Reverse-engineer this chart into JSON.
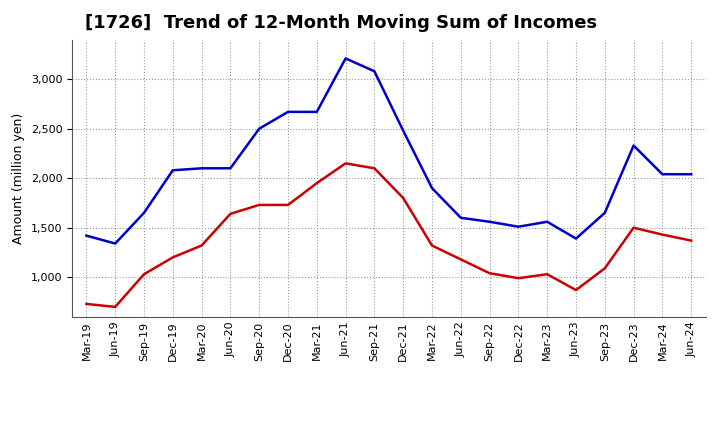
{
  "title": "[1726]  Trend of 12-Month Moving Sum of Incomes",
  "ylabel": "Amount (million yen)",
  "labels": [
    "Mar-19",
    "Jun-19",
    "Sep-19",
    "Dec-19",
    "Mar-20",
    "Jun-20",
    "Sep-20",
    "Dec-20",
    "Mar-21",
    "Jun-21",
    "Sep-21",
    "Dec-21",
    "Mar-22",
    "Jun-22",
    "Sep-22",
    "Dec-22",
    "Mar-23",
    "Jun-23",
    "Sep-23",
    "Dec-23",
    "Mar-24",
    "Jun-24"
  ],
  "ordinary_income": [
    1420,
    1340,
    1650,
    2080,
    2100,
    2100,
    2500,
    2670,
    2670,
    3210,
    3080,
    2480,
    1900,
    1600,
    1560,
    1510,
    1560,
    1390,
    1650,
    2330,
    2040,
    2040
  ],
  "net_income": [
    730,
    700,
    1030,
    1200,
    1320,
    1640,
    1730,
    1730,
    1950,
    2150,
    2100,
    1800,
    1320,
    1180,
    1040,
    990,
    1030,
    870,
    1090,
    1500,
    1430,
    1370
  ],
  "ordinary_color": "#0000cc",
  "net_color": "#cc0000",
  "ylim": [
    600,
    3400
  ],
  "yticks": [
    1000,
    1500,
    2000,
    2500,
    3000
  ],
  "background_color": "#ffffff",
  "grid_color": "#999999",
  "title_fontsize": 13,
  "axis_fontsize": 9,
  "tick_fontsize": 8,
  "legend_fontsize": 9,
  "linewidth": 1.8
}
